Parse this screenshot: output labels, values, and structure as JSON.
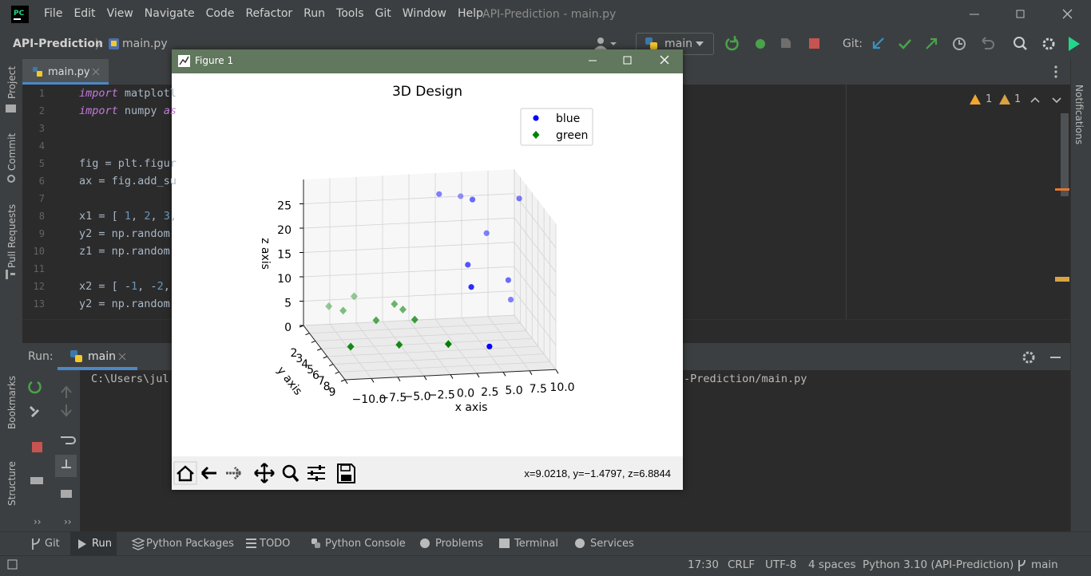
{
  "menu": [
    "File",
    "Edit",
    "View",
    "Navigate",
    "Code",
    "Refactor",
    "Run",
    "Tools",
    "Git",
    "Window",
    "Help"
  ],
  "window_title": "API-Prediction - main.py",
  "breadcrumb": {
    "project": "API-Prediction",
    "file": "main.py"
  },
  "run_config": "main",
  "git_label": "Git:",
  "editor_tab": "main.py",
  "line_numbers": [
    1,
    2,
    3,
    4,
    5,
    6,
    7,
    8,
    9,
    10,
    11,
    12,
    13
  ],
  "code": [
    "import matplotl",
    "import numpy as",
    null,
    null,
    "fig = plt.figur",
    "ax = fig.add_su",
    null,
    "x1 = [ 1, 2, 3,",
    "y2 = np.random",
    "z1 = np.random",
    null,
    "x2 = [ -1, -2,",
    "y2 = np.random"
  ],
  "inspections": {
    "warnings": "1",
    "weak_warnings": "1"
  },
  "left_tools": [
    "Project",
    "Commit",
    "Pull Requests"
  ],
  "left_bottom_tools": [
    "Bookmarks",
    "Structure"
  ],
  "right_tools": [
    "Notifications"
  ],
  "run_panel": {
    "label": "Run:",
    "tab": "main",
    "output_left": "C:\\Users\\jul",
    "output_right": "-Prediction/main.py"
  },
  "bottom_tabs": [
    "Git",
    "Run",
    "Python Packages",
    "TODO",
    "Python Console",
    "Problems",
    "Terminal",
    "Services"
  ],
  "status": {
    "position": "17:30",
    "line_sep": "CRLF",
    "encoding": "UTF-8",
    "indent": "4 spaces",
    "interpreter": "Python 3.10 (API-Prediction)",
    "branch": "main"
  },
  "figure": {
    "window_title": "Figure 1",
    "coords": "x=9.0218, y=−1.4797, z=6.8844"
  },
  "chart_data": {
    "type": "scatter3d",
    "title": "3D Design",
    "xlabel": "x axis",
    "ylabel": "y axis",
    "zlabel": "z axis",
    "xlim": [
      -10,
      10
    ],
    "ylim": [
      2,
      9
    ],
    "zlim": [
      0,
      30
    ],
    "xticks": [
      {
        "value": -10,
        "label": "−10.0"
      },
      {
        "value": -7.5,
        "label": "−7.5"
      },
      {
        "value": -5,
        "label": "−5.0"
      },
      {
        "value": -2.5,
        "label": "−2.5"
      },
      {
        "value": 0,
        "label": "0.0"
      },
      {
        "value": 2.5,
        "label": "2.5"
      },
      {
        "value": 5,
        "label": "5.0"
      },
      {
        "value": 7.5,
        "label": "7.5"
      },
      {
        "value": 10,
        "label": "10.0"
      }
    ],
    "yticks": [
      2,
      3,
      4,
      5,
      6,
      7,
      8,
      9
    ],
    "zticks": [
      0,
      5,
      10,
      15,
      20,
      25
    ],
    "grid": true,
    "legend": "upper right",
    "series": [
      {
        "name": "blue",
        "color": "#0000ff",
        "marker": "circle",
        "x": [
          2.3,
          4.9,
          4.9,
          9.9,
          6.8,
          3.9,
          3.1,
          8.3,
          9.1,
          3.7
        ],
        "y": [
          3,
          2,
          4,
          3,
          3,
          5,
          7,
          4,
          3,
          9
        ],
        "z": [
          27.3,
          25.0,
          27.5,
          25.6,
          18.8,
          15.8,
          14.5,
          10.6,
          4.9,
          5.4
        ]
      },
      {
        "name": "green",
        "color": "#008000",
        "marker": "diamond",
        "x": [
          -7.6,
          -6.8,
          -5.2,
          -2.5,
          -1.7,
          -4.8,
          -1.7,
          -8.9,
          -4.3,
          -0.2
        ],
        "y": [
          2,
          3,
          2,
          4,
          4,
          5,
          6,
          8,
          8,
          9
        ],
        "z": [
          3.7,
          4.3,
          5.5,
          6.8,
          5.6,
          5.3,
          6.7,
          5.1,
          5.0,
          6.3
        ]
      }
    ]
  }
}
